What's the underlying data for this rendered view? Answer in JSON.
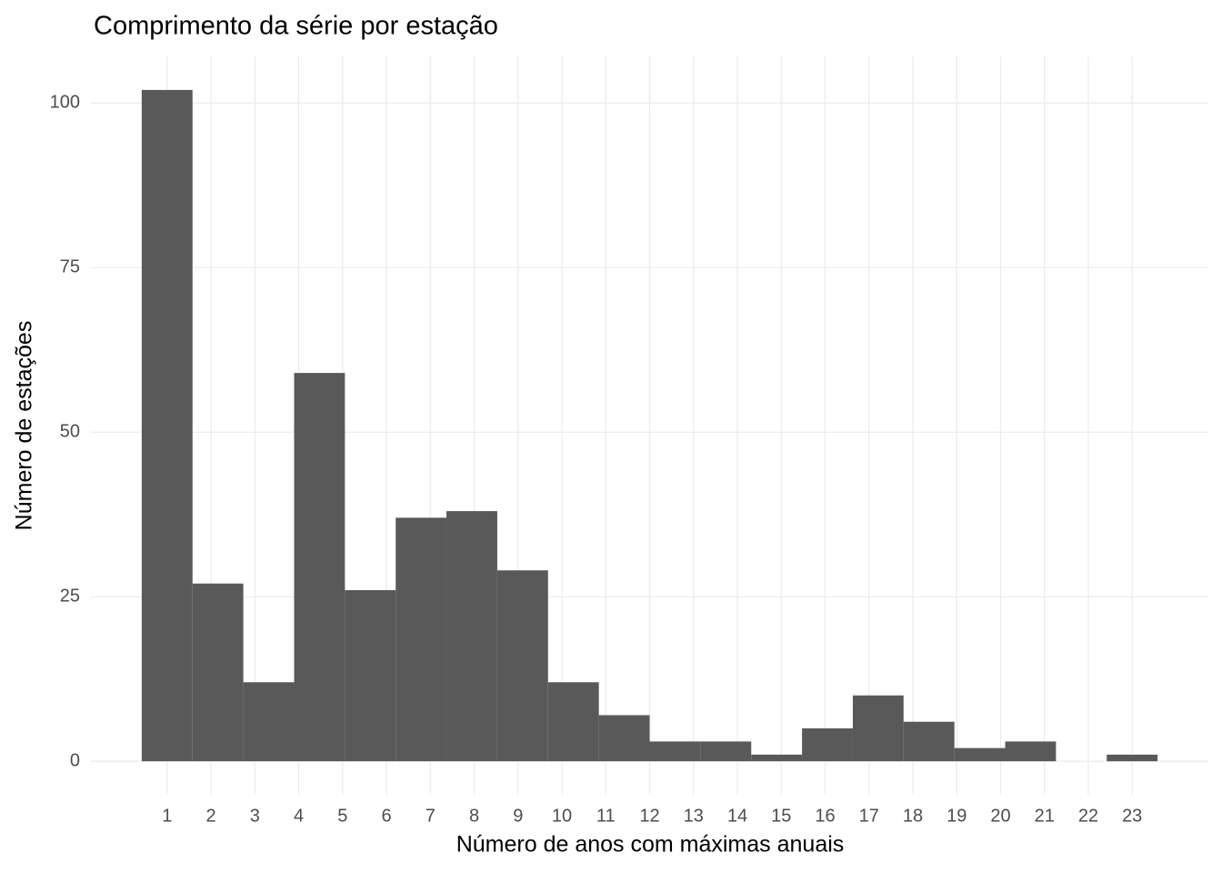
{
  "chart_data": {
    "type": "histogram",
    "title": "Comprimento da série por estação",
    "x_label": "Número de anos com máximas anuais",
    "y_label": "Número de estações",
    "bins": [
      0.421,
      1.579,
      2.737,
      3.895,
      5.053,
      6.211,
      7.368,
      8.526,
      9.684,
      10.842,
      12.0,
      13.158,
      14.316,
      15.474,
      16.632,
      17.789,
      18.947,
      20.105,
      21.263,
      22.421,
      23.579
    ],
    "values": [
      102,
      27,
      12,
      59,
      26,
      37,
      38,
      29,
      12,
      7,
      3,
      3,
      1,
      5,
      10,
      6,
      2,
      3,
      0,
      1
    ],
    "color": "#595959",
    "xlim": [
      -0.737,
      24.737
    ],
    "ylim": [
      -5.1,
      107.1
    ],
    "xticks": [
      1,
      2,
      3,
      4,
      5,
      6,
      7,
      8,
      9,
      10,
      11,
      12,
      13,
      14,
      15,
      16,
      17,
      18,
      19,
      20,
      21,
      22,
      23
    ],
    "yticks": [
      0,
      25,
      50,
      75,
      100
    ],
    "grid": true
  }
}
